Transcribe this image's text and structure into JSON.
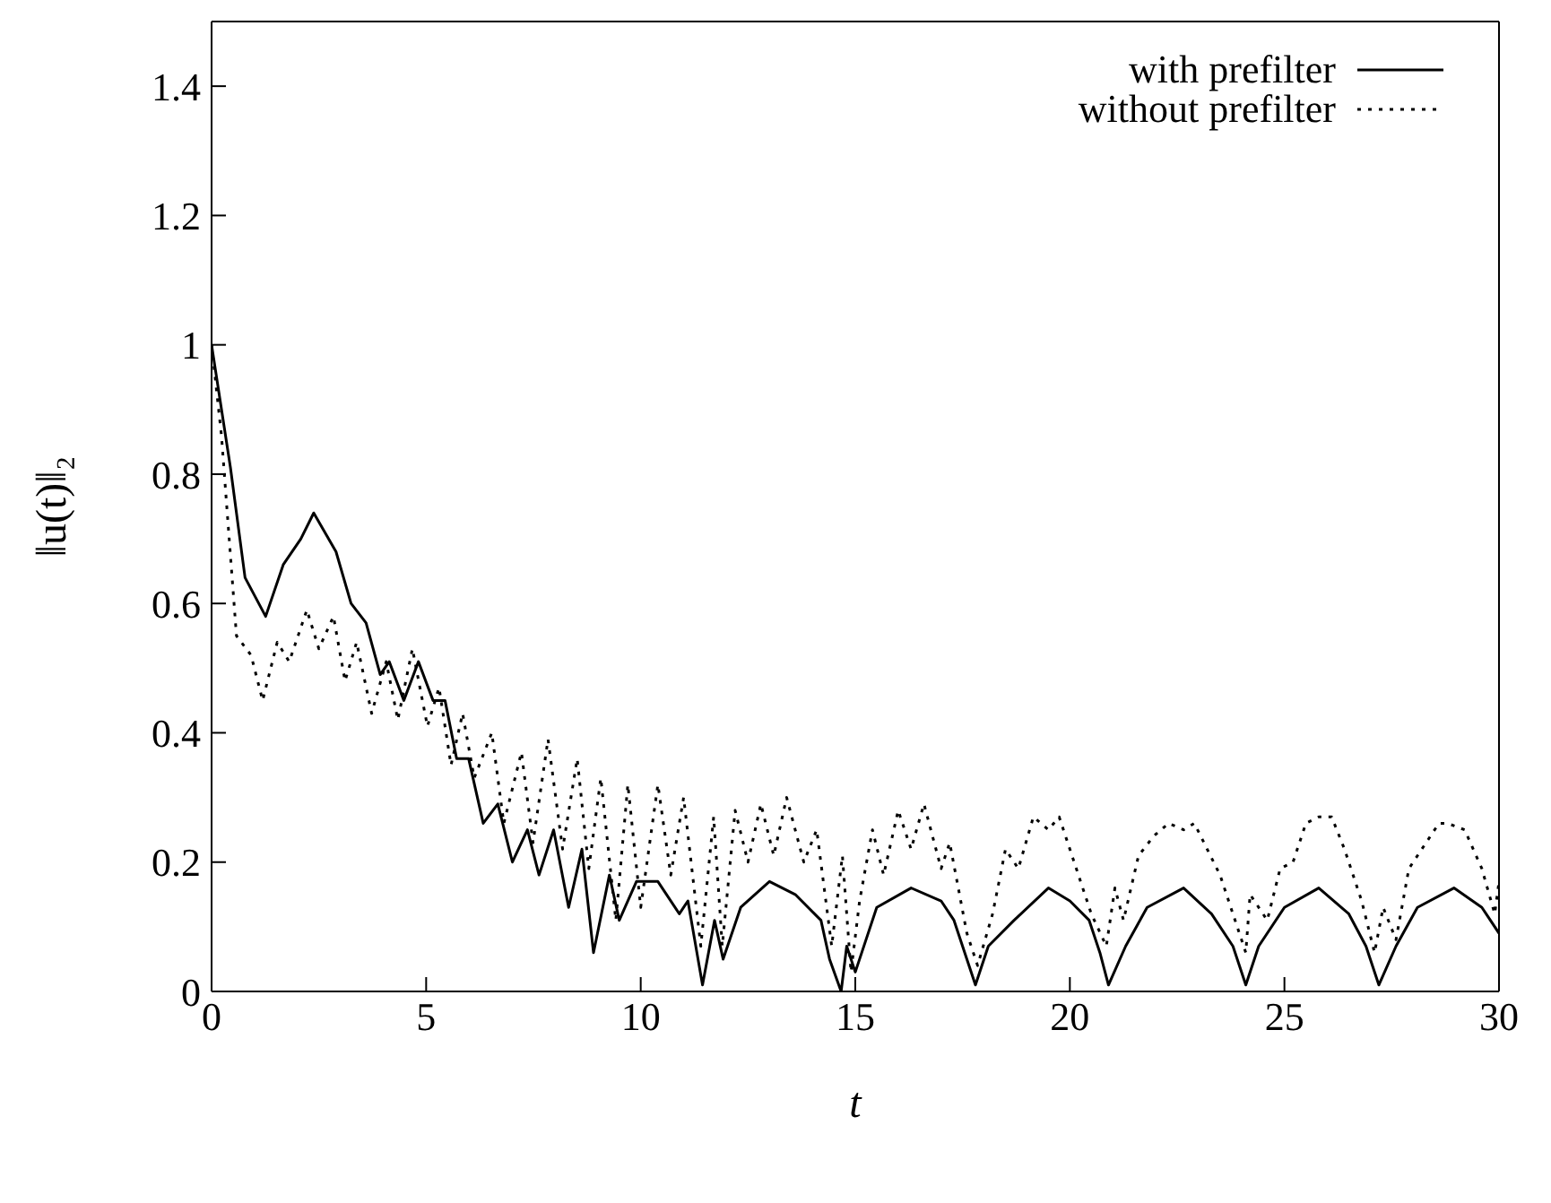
{
  "chart_data": {
    "type": "line",
    "xlabel": "t",
    "ylabel": "‖u(t)‖₂",
    "xlim": [
      0,
      30
    ],
    "ylim": [
      0,
      1.5
    ],
    "xticks": [
      0,
      5,
      10,
      15,
      20,
      25,
      30
    ],
    "yticks": [
      0,
      0.2,
      0.4,
      0.6,
      0.8,
      1,
      1.2,
      1.4
    ],
    "legend": "top right",
    "marker": "none",
    "series": [
      {
        "name": "with prefilter",
        "color": "#000000",
        "line_style": "solid",
        "x": [
          0,
          0.44,
          0.78,
          1.26,
          1.67,
          2.08,
          2.38,
          2.9,
          3.25,
          3.6,
          3.93,
          4.14,
          4.48,
          4.82,
          5.16,
          5.44,
          5.71,
          5.99,
          6.33,
          6.67,
          7.01,
          7.36,
          7.63,
          7.97,
          8.32,
          8.63,
          8.9,
          9.27,
          9.5,
          9.9,
          10.4,
          10.9,
          11.1,
          11.44,
          11.72,
          11.92,
          12.33,
          13.0,
          13.6,
          14.2,
          14.4,
          14.67,
          14.8,
          15.0,
          15.5,
          16.3,
          17.0,
          17.3,
          17.6,
          17.8,
          18.1,
          18.7,
          19.5,
          20.0,
          20.45,
          20.7,
          20.9,
          21.3,
          21.8,
          22.65,
          23.3,
          23.8,
          24.1,
          24.4,
          25.0,
          25.8,
          26.5,
          26.9,
          27.2,
          27.6,
          28.1,
          28.95,
          29.6,
          30
        ],
        "values": [
          1.0,
          0.81,
          0.64,
          0.58,
          0.66,
          0.7,
          0.74,
          0.68,
          0.6,
          0.57,
          0.49,
          0.51,
          0.45,
          0.51,
          0.45,
          0.45,
          0.36,
          0.36,
          0.26,
          0.29,
          0.2,
          0.25,
          0.18,
          0.25,
          0.13,
          0.22,
          0.06,
          0.18,
          0.11,
          0.17,
          0.17,
          0.12,
          0.14,
          0.01,
          0.11,
          0.05,
          0.13,
          0.17,
          0.15,
          0.11,
          0.05,
          0.0,
          0.07,
          0.03,
          0.13,
          0.16,
          0.14,
          0.11,
          0.05,
          0.01,
          0.07,
          0.11,
          0.16,
          0.14,
          0.11,
          0.06,
          0.01,
          0.07,
          0.13,
          0.16,
          0.12,
          0.07,
          0.01,
          0.07,
          0.13,
          0.16,
          0.12,
          0.07,
          0.01,
          0.07,
          0.13,
          0.16,
          0.13,
          0.09
        ]
      },
      {
        "name": "without prefilter",
        "color": "#000000",
        "line_style": "dotted",
        "x": [
          0,
          0.23,
          0.58,
          0.92,
          1.19,
          1.53,
          1.81,
          2.22,
          2.5,
          2.84,
          3.11,
          3.38,
          3.73,
          4.07,
          4.34,
          4.68,
          5.03,
          5.3,
          5.58,
          5.85,
          6.12,
          6.53,
          6.81,
          7.22,
          7.49,
          7.84,
          8.18,
          8.52,
          8.79,
          9.07,
          9.42,
          9.7,
          10.0,
          10.4,
          10.7,
          11.0,
          11.4,
          11.7,
          11.9,
          12.2,
          12.5,
          12.8,
          13.1,
          13.4,
          13.8,
          14.1,
          14.45,
          14.7,
          14.9,
          15.1,
          15.4,
          15.66,
          16.0,
          16.3,
          16.6,
          17.0,
          17.2,
          17.6,
          17.85,
          18.2,
          18.5,
          18.8,
          19.15,
          19.5,
          19.75,
          20.2,
          20.5,
          20.85,
          21.05,
          21.25,
          21.6,
          21.95,
          22.3,
          22.65,
          22.9,
          23.2,
          23.5,
          23.8,
          24.1,
          24.2,
          24.6,
          24.9,
          25.2,
          25.5,
          25.8,
          26.1,
          26.4,
          26.8,
          27.1,
          27.3,
          27.6,
          27.9,
          28.3,
          28.6,
          28.8,
          29.2,
          29.6,
          29.9,
          30
        ],
        "values": [
          1.0,
          0.86,
          0.55,
          0.52,
          0.45,
          0.54,
          0.51,
          0.59,
          0.53,
          0.58,
          0.48,
          0.54,
          0.43,
          0.51,
          0.42,
          0.53,
          0.41,
          0.47,
          0.35,
          0.43,
          0.33,
          0.4,
          0.26,
          0.37,
          0.23,
          0.39,
          0.22,
          0.36,
          0.19,
          0.33,
          0.11,
          0.32,
          0.13,
          0.32,
          0.18,
          0.3,
          0.07,
          0.27,
          0.07,
          0.28,
          0.2,
          0.29,
          0.21,
          0.3,
          0.2,
          0.25,
          0.07,
          0.21,
          0.03,
          0.14,
          0.25,
          0.18,
          0.28,
          0.22,
          0.29,
          0.19,
          0.23,
          0.09,
          0.04,
          0.12,
          0.22,
          0.19,
          0.27,
          0.25,
          0.27,
          0.18,
          0.12,
          0.07,
          0.16,
          0.11,
          0.21,
          0.24,
          0.26,
          0.25,
          0.26,
          0.22,
          0.18,
          0.12,
          0.06,
          0.15,
          0.11,
          0.19,
          0.2,
          0.26,
          0.27,
          0.27,
          0.22,
          0.14,
          0.06,
          0.13,
          0.08,
          0.19,
          0.23,
          0.26,
          0.26,
          0.25,
          0.19,
          0.12,
          0.17
        ]
      }
    ]
  }
}
